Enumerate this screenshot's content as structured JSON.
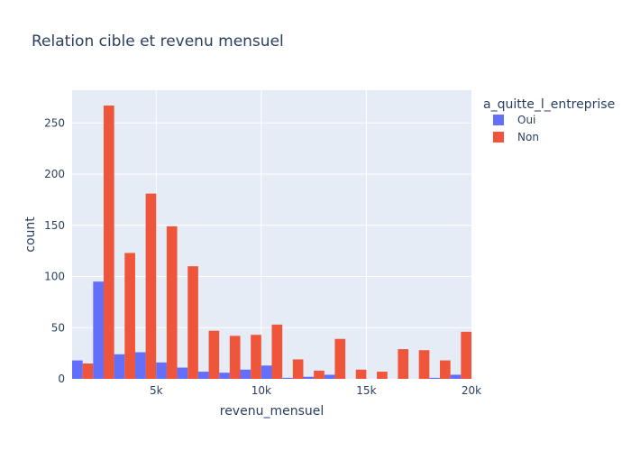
{
  "chart_data": {
    "type": "bar",
    "title": "Relation cible et revenu mensuel",
    "xlabel": "revenu_mensuel",
    "ylabel": "count",
    "xlim": [
      1000,
      20000
    ],
    "ylim": [
      0,
      282
    ],
    "x_ticks": [
      5000,
      10000,
      15000,
      20000
    ],
    "x_tick_labels": [
      "5k",
      "10k",
      "15k",
      "20k"
    ],
    "y_ticks": [
      0,
      50,
      100,
      150,
      200,
      250
    ],
    "y_tick_labels": [
      "0",
      "50",
      "100",
      "150",
      "200",
      "250"
    ],
    "bin_start": 1000,
    "bin_width": 1000,
    "grid": true,
    "legend": {
      "title": "a_quitte_l_entreprise",
      "placement": "right"
    },
    "series": [
      {
        "name": "Oui",
        "color": "#636efa",
        "values": [
          18,
          95,
          24,
          26,
          16,
          11,
          7,
          6,
          9,
          13,
          1,
          2,
          4,
          0,
          0,
          0,
          0,
          1,
          4
        ]
      },
      {
        "name": "Non",
        "color": "#ef553b",
        "values": [
          15,
          267,
          123,
          181,
          149,
          110,
          47,
          42,
          43,
          53,
          19,
          8,
          39,
          9,
          7,
          29,
          28,
          18,
          46
        ]
      }
    ]
  }
}
